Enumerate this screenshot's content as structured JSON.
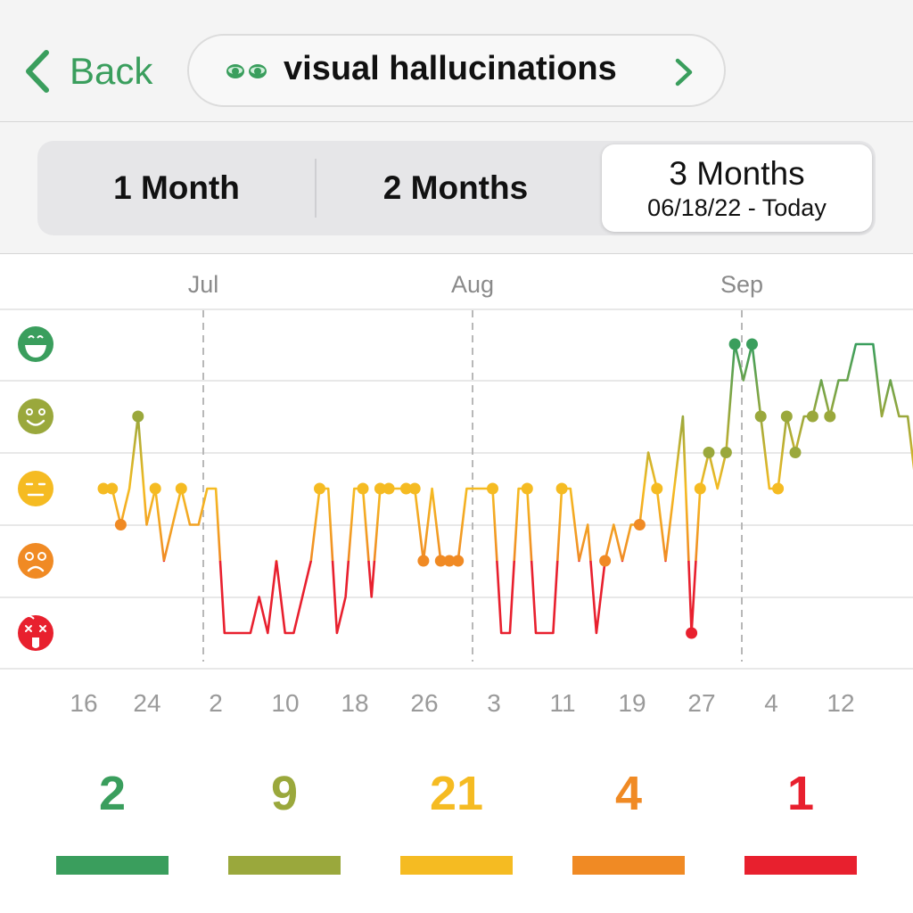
{
  "header": {
    "back_label": "Back",
    "symptom_title": "visual hallucinations",
    "icons": {
      "back": "chevron-left-icon",
      "symptom": "eyes-icon",
      "next": "chevron-right-icon"
    }
  },
  "range_tabs": [
    {
      "label": "1 Month",
      "selected": false,
      "sub": ""
    },
    {
      "label": "2 Months",
      "selected": false,
      "sub": ""
    },
    {
      "label": "3 Months",
      "selected": true,
      "sub": "06/18/22 - Today"
    }
  ],
  "mood_levels": [
    {
      "level": 5,
      "icon": "grinning-face-icon",
      "color": "#3a9e5d"
    },
    {
      "level": 4,
      "icon": "smiling-face-icon",
      "color": "#9aa83c"
    },
    {
      "level": 3,
      "icon": "neutral-face-icon",
      "color": "#f5bb22"
    },
    {
      "level": 2,
      "icon": "frowning-face-icon",
      "color": "#f08a24"
    },
    {
      "level": 1,
      "icon": "dizzy-face-icon",
      "color": "#e8202e"
    }
  ],
  "chart_data": {
    "type": "line",
    "months": [
      "Jul",
      "Aug",
      "Sep"
    ],
    "x_ticks": [
      "16",
      "24",
      "2",
      "10",
      "18",
      "26",
      "3",
      "11",
      "19",
      "27",
      "4",
      "12"
    ],
    "y_range": [
      1,
      5
    ],
    "series": [
      {
        "points": [
          [
            0,
            3
          ],
          [
            1,
            3
          ],
          [
            2,
            2.5
          ],
          [
            3,
            3
          ],
          [
            4,
            4
          ],
          [
            5,
            2.5
          ],
          [
            6,
            3
          ],
          [
            7,
            2
          ],
          [
            8,
            2.5
          ],
          [
            9,
            3
          ],
          [
            10,
            2.5
          ],
          [
            11,
            2.5
          ],
          [
            12,
            3
          ],
          [
            13,
            3
          ],
          [
            14,
            1
          ],
          [
            15,
            1
          ],
          [
            16,
            1
          ],
          [
            17,
            1
          ],
          [
            18,
            1.5
          ],
          [
            19,
            1
          ],
          [
            20,
            2
          ],
          [
            21,
            1
          ],
          [
            22,
            1
          ],
          [
            23,
            1.5
          ],
          [
            24,
            2
          ],
          [
            25,
            3
          ],
          [
            26,
            3
          ],
          [
            27,
            1
          ],
          [
            28,
            1.5
          ],
          [
            29,
            3
          ],
          [
            30,
            3
          ],
          [
            31,
            1.5
          ],
          [
            32,
            3
          ],
          [
            33,
            3
          ],
          [
            34,
            3
          ],
          [
            35,
            3
          ],
          [
            36,
            3
          ],
          [
            37,
            2
          ],
          [
            38,
            3
          ],
          [
            39,
            2
          ],
          [
            40,
            2
          ],
          [
            41,
            2
          ],
          [
            42,
            3
          ],
          [
            43,
            3
          ],
          [
            44,
            3
          ],
          [
            45,
            3
          ],
          [
            46,
            1
          ],
          [
            47,
            1
          ],
          [
            48,
            3
          ],
          [
            49,
            3
          ],
          [
            50,
            1
          ],
          [
            51,
            1
          ],
          [
            52,
            1
          ],
          [
            53,
            3
          ],
          [
            54,
            3
          ],
          [
            55,
            2
          ],
          [
            56,
            2.5
          ],
          [
            57,
            1
          ],
          [
            58,
            2
          ],
          [
            59,
            2.5
          ],
          [
            60,
            2
          ],
          [
            61,
            2.5
          ],
          [
            62,
            2.5
          ],
          [
            63,
            3.5
          ],
          [
            64,
            3
          ],
          [
            65,
            2
          ],
          [
            66,
            3
          ],
          [
            67,
            4
          ],
          [
            68,
            1
          ],
          [
            69,
            3
          ],
          [
            70,
            3.5
          ],
          [
            71,
            3
          ],
          [
            72,
            3.5
          ],
          [
            73,
            5
          ],
          [
            74,
            4.5
          ],
          [
            75,
            5
          ],
          [
            76,
            4
          ],
          [
            77,
            3
          ],
          [
            78,
            3
          ],
          [
            79,
            4
          ],
          [
            80,
            3.5
          ],
          [
            81,
            4
          ],
          [
            82,
            4
          ],
          [
            83,
            4.5
          ],
          [
            84,
            4
          ],
          [
            85,
            4.5
          ],
          [
            86,
            4.5
          ],
          [
            87,
            5
          ],
          [
            88,
            5
          ],
          [
            89,
            5
          ],
          [
            90,
            4
          ],
          [
            91,
            4.5
          ],
          [
            92,
            4
          ],
          [
            93,
            4
          ],
          [
            94,
            3
          ],
          [
            95,
            4
          ],
          [
            96,
            4
          ]
        ]
      }
    ],
    "markers": [
      0,
      1,
      2,
      4,
      6,
      9,
      25,
      30,
      32,
      33,
      35,
      36,
      37,
      39,
      40,
      41,
      45,
      49,
      53,
      58,
      62,
      64,
      68,
      69,
      70,
      72,
      73,
      75,
      76,
      78,
      79,
      80,
      82,
      84,
      96
    ],
    "grid": true
  },
  "counts": [
    {
      "value": "2",
      "color": "#3a9e5d"
    },
    {
      "value": "9",
      "color": "#9aa83c"
    },
    {
      "value": "21",
      "color": "#f5bb22"
    },
    {
      "value": "4",
      "color": "#f08a24"
    },
    {
      "value": "1",
      "color": "#e8202e"
    }
  ]
}
